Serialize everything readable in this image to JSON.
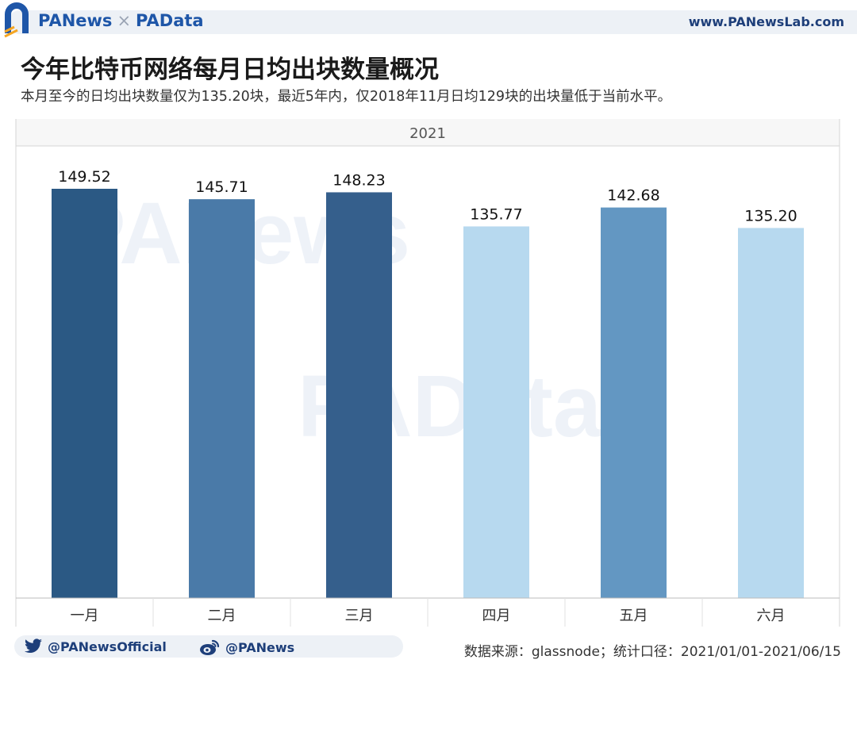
{
  "header": {
    "brand_left": "PANews",
    "brand_separator": "×",
    "brand_right": "PAData",
    "site": "www.PANewsLab.com"
  },
  "title": "今年比特币网络每月日均出块数量概况",
  "subtitle": "本月至今的日均出块数量仅为135.20块，最近5年内，仅2018年11月日均129块的出块量低于当前水平。",
  "chart_data": {
    "type": "bar",
    "panel_label": "2021",
    "categories": [
      "一月",
      "二月",
      "三月",
      "四月",
      "五月",
      "六月"
    ],
    "values": [
      149.52,
      145.71,
      148.23,
      135.77,
      142.68,
      135.2
    ],
    "value_labels": [
      "149.52",
      "145.71",
      "148.23",
      "135.77",
      "142.68",
      "135.20"
    ],
    "colors": [
      "#2b5984",
      "#4a7aa8",
      "#355f8c",
      "#b7d9ef",
      "#6397c2",
      "#b7d9ef"
    ],
    "title": "今年比特币网络每月日均出块数量概况",
    "xlabel": "",
    "ylabel": "",
    "grid": false,
    "legend": "none"
  },
  "footer": {
    "twitter": "@PANewsOfficial",
    "weibo": "@PANews",
    "source": "数据来源：glassnode；统计口径：2021/01/01-2021/06/15"
  },
  "colors": {
    "brand": "#1e56a8",
    "brand_accent": "#f5a623"
  },
  "icons": [
    "panews-logo-icon",
    "twitter-bird-icon",
    "weibo-icon"
  ]
}
